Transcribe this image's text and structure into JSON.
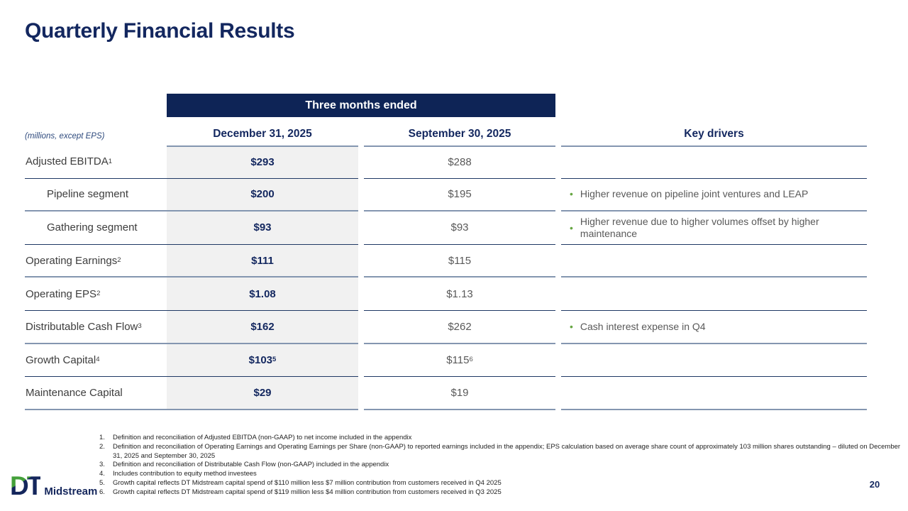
{
  "slide": {
    "title": "Quarterly Financial Results",
    "units_note": "(millions, except EPS)",
    "page_number": "20"
  },
  "logo": {
    "mark": "DT",
    "name": "Midstream"
  },
  "colors": {
    "navy": "#13275f",
    "header_band_bg": "#0e2456",
    "bullet_green": "#67a643",
    "dec_column_bg": "#f1f1f1",
    "border_navy": "#1f3864",
    "border_blue_gray": "#8496b0"
  },
  "table": {
    "span_header": "Three months ended",
    "column_headers": {
      "dec": "December 31, 2025",
      "sep": "September 30, 2025",
      "key": "Key drivers"
    },
    "rows": [
      {
        "label": "Adjusted EBITDA",
        "sup": "1",
        "indent": false,
        "dec": "$293",
        "dec_sup": "",
        "sep": "$288",
        "sep_sup": "",
        "driver": ""
      },
      {
        "label": "Pipeline segment",
        "sup": "",
        "indent": true,
        "dec": "$200",
        "dec_sup": "",
        "sep": "$195",
        "sep_sup": "",
        "driver": "Higher revenue on pipeline joint ventures and LEAP"
      },
      {
        "label": "Gathering segment",
        "sup": "",
        "indent": true,
        "dec": "$93",
        "dec_sup": "",
        "sep": "$93",
        "sep_sup": "",
        "driver": "Higher revenue due to higher volumes offset by higher maintenance"
      },
      {
        "label": "Operating Earnings",
        "sup": "2",
        "indent": false,
        "dec": "$111",
        "dec_sup": "",
        "sep": "$115",
        "sep_sup": "",
        "driver": ""
      },
      {
        "label": "Operating EPS",
        "sup": "2",
        "indent": false,
        "dec": "$1.08",
        "dec_sup": "",
        "sep": "$1.13",
        "sep_sup": "",
        "driver": ""
      },
      {
        "label": "Distributable Cash Flow",
        "sup": "3",
        "indent": false,
        "dec": "$162",
        "dec_sup": "",
        "sep": "$262",
        "sep_sup": "",
        "driver": "Cash interest expense in Q4"
      },
      {
        "label": "Growth Capital",
        "sup": "4",
        "indent": false,
        "dec": "$103",
        "dec_sup": "5",
        "sep": "$115",
        "sep_sup": "6",
        "driver": ""
      },
      {
        "label": "Maintenance Capital",
        "sup": "",
        "indent": false,
        "dec": "$29",
        "dec_sup": "",
        "sep": "$19",
        "sep_sup": "",
        "driver": ""
      }
    ]
  },
  "footnotes": [
    "Definition and reconciliation of Adjusted EBITDA (non-GAAP) to net income included in the appendix",
    "Definition and reconciliation of Operating Earnings and Operating Earnings per Share (non-GAAP) to reported earnings included in the appendix; EPS calculation based on average share count of approximately 103 million shares outstanding – diluted on December 31, 2025 and September 30, 2025",
    "Definition and reconciliation of Distributable Cash Flow (non-GAAP) included in the appendix",
    "Includes contribution to equity method investees",
    "Growth capital reflects DT Midstream capital spend of $110 million less $7 million contribution from customers received in Q4 2025",
    "Growth capital reflects DT Midstream capital spend of $119 million less $4 million contribution from customers received in Q3 2025"
  ]
}
